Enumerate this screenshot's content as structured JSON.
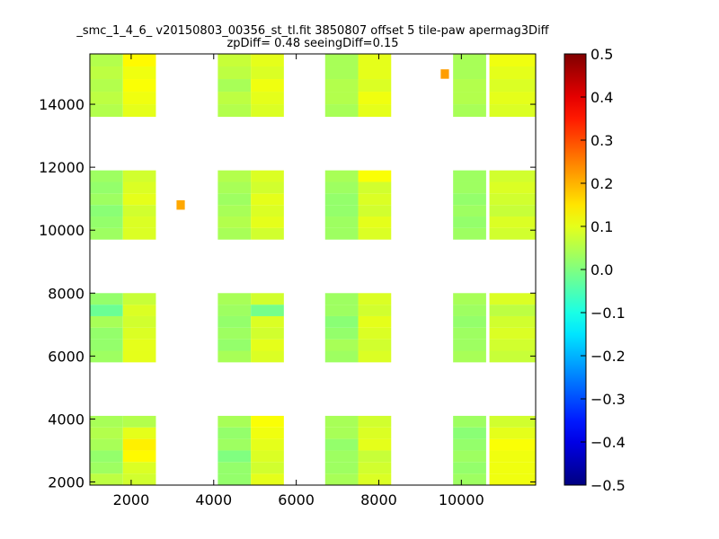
{
  "chart_data": {
    "type": "heatmap",
    "title": "_smc_1_4_6_ v20150803_00356_st_tl.fit 3850807 offset 5 tile-paw apermag3Diff",
    "subtitle": "zpDiff= 0.48 seeingDiff=0.15",
    "xlabel": "",
    "ylabel": "",
    "xlim": [
      1000,
      11800
    ],
    "ylim": [
      1900,
      15600
    ],
    "x_ticks": [
      2000,
      4000,
      6000,
      8000,
      10000
    ],
    "x_tick_labels": [
      "2000",
      "4000",
      "6000",
      "8000",
      "10000"
    ],
    "y_ticks": [
      2000,
      4000,
      6000,
      8000,
      10000,
      12000,
      14000
    ],
    "y_tick_labels": [
      "2000",
      "4000",
      "6000",
      "8000",
      "10000",
      "12000",
      "14000"
    ],
    "colorbar": {
      "colormap": "jet",
      "min": -0.5,
      "max": 0.5,
      "ticks": [
        0.5,
        0.4,
        0.3,
        0.2,
        0.1,
        0.0,
        -0.1,
        -0.2,
        -0.3,
        -0.4,
        -0.5
      ],
      "tick_labels": [
        "0.5",
        "0.4",
        "0.3",
        "0.2",
        "0.1",
        "0.0",
        "−0.1",
        "−0.2",
        "−0.3",
        "−0.4",
        "−0.5"
      ]
    },
    "grid": false,
    "tile_x_ranges": [
      [
        1000,
        2000
      ],
      [
        2000,
        3000
      ],
      [
        3700,
        4700
      ],
      [
        4700,
        5700
      ],
      [
        6700,
        7700
      ],
      [
        7700,
        8700
      ],
      [
        9400,
        10400
      ],
      [
        10400,
        11800
      ]
    ],
    "tile_y_ranges": [
      [
        1900,
        4100
      ],
      [
        5800,
        8000
      ],
      [
        9700,
        11900
      ],
      [
        13600,
        15600
      ]
    ],
    "cell_value_grid": [
      [
        [
          0.06,
          0.03,
          0.02,
          0.04,
          0.05,
          0.04
        ],
        [
          0.08,
          0.09,
          0.13,
          0.14,
          0.1,
          0.05
        ],
        [
          null,
          null,
          null,
          null,
          null,
          null
        ],
        [
          0.02,
          0.02,
          0.0,
          0.03,
          0.02,
          0.04
        ],
        [
          0.1,
          0.08,
          0.09,
          0.1,
          0.11,
          0.12
        ],
        [
          0.04,
          0.03,
          0.03,
          0.02,
          0.04,
          0.04
        ],
        [
          0.09,
          0.08,
          0.07,
          0.1,
          0.09,
          0.08
        ],
        [
          null,
          null,
          null,
          null,
          null,
          null
        ],
        [
          0.03,
          0.02,
          0.03,
          0.02,
          0.01,
          0.03
        ],
        [
          0.11,
          0.11,
          0.11,
          0.12,
          0.1,
          0.08
        ]
      ],
      [
        [
          0.03,
          0.02,
          0.02,
          0.04,
          -0.02,
          0.02
        ],
        [
          0.1,
          0.1,
          0.09,
          0.08,
          0.09,
          0.07
        ],
        [
          null,
          null,
          null,
          null,
          null,
          null
        ],
        [
          0.04,
          0.02,
          0.03,
          0.02,
          0.03,
          0.04
        ],
        [
          0.09,
          0.1,
          0.08,
          0.09,
          -0.01,
          0.08
        ],
        [
          0.03,
          0.04,
          0.02,
          0.01,
          0.03,
          0.03
        ],
        [
          0.09,
          0.08,
          0.09,
          0.1,
          0.08,
          0.09
        ],
        [
          null,
          null,
          null,
          null,
          null,
          null
        ],
        [
          0.04,
          0.03,
          0.03,
          0.02,
          0.03,
          0.04
        ],
        [
          0.07,
          0.08,
          0.09,
          0.08,
          0.06,
          0.09
        ]
      ],
      [
        [
          0.03,
          0.02,
          0.01,
          0.03,
          0.02,
          0.03
        ],
        [
          0.09,
          0.09,
          0.08,
          0.1,
          0.09,
          0.08
        ],
        [
          null,
          null,
          null,
          null,
          null,
          null
        ],
        [
          0.04,
          0.05,
          0.04,
          0.03,
          0.04,
          0.05
        ],
        [
          0.08,
          0.1,
          0.09,
          0.1,
          0.08,
          0.09
        ],
        [
          0.03,
          0.03,
          0.02,
          0.02,
          0.03,
          0.04
        ],
        [
          0.09,
          0.1,
          0.08,
          0.09,
          0.08,
          0.12
        ],
        [
          null,
          null,
          null,
          null,
          null,
          null
        ],
        [
          0.03,
          0.02,
          0.03,
          0.02,
          0.03,
          0.03
        ],
        [
          0.08,
          0.09,
          0.07,
          0.08,
          0.09,
          0.08
        ]
      ],
      [
        [
          0.05,
          0.06,
          0.05,
          0.06,
          0.05
        ],
        [
          0.1,
          0.11,
          0.12,
          0.11,
          0.13
        ],
        [
          null,
          null,
          null,
          null,
          null
        ],
        [
          0.05,
          0.06,
          0.04,
          0.06,
          0.07
        ],
        [
          0.09,
          0.1,
          0.11,
          0.09,
          0.1
        ],
        [
          0.04,
          0.05,
          0.05,
          0.04,
          0.04
        ],
        [
          0.1,
          0.11,
          0.09,
          0.1,
          0.1
        ],
        [
          null,
          null,
          null,
          null,
          null
        ],
        [
          0.04,
          0.05,
          0.05,
          0.04,
          0.04
        ],
        [
          0.09,
          0.1,
          0.09,
          0.1,
          0.11
        ]
      ]
    ],
    "highlighted_cells": [
      {
        "x": 3200,
        "y": 10800,
        "value": 0.21
      },
      {
        "x": 9600,
        "y": 14960,
        "value": 0.22
      }
    ]
  }
}
